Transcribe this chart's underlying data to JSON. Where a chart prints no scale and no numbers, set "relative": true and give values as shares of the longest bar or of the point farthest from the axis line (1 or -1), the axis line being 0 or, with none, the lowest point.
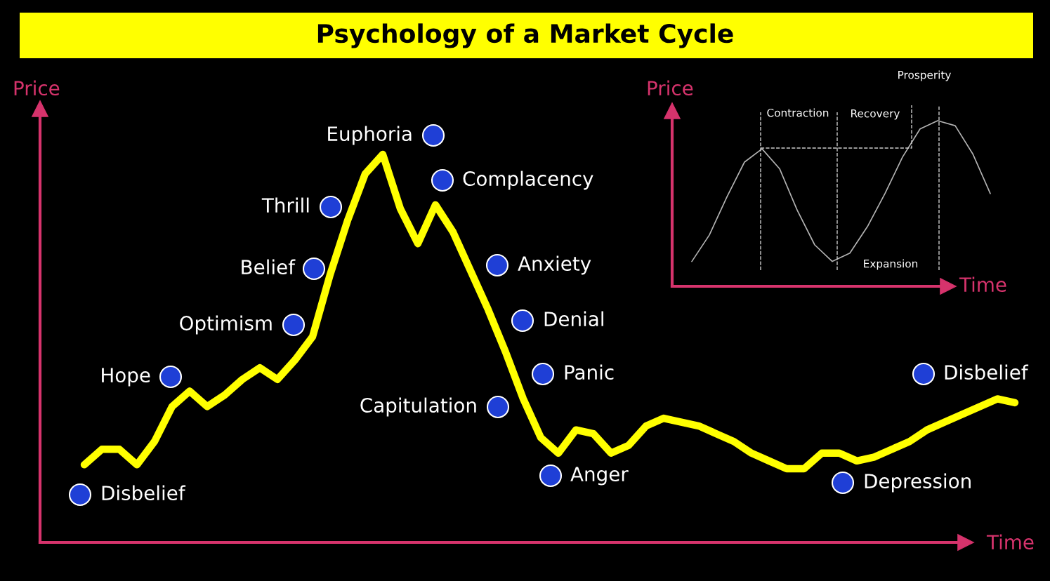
{
  "chart_data": [
    {
      "type": "line",
      "title": "Psychology of a Market Cycle",
      "xlabel": "Time",
      "ylabel": "Price",
      "relative": true,
      "line_style": "solid",
      "categories": [
        null,
        null,
        null,
        null,
        null,
        null,
        null,
        null,
        null,
        null,
        null,
        null,
        null,
        null,
        null,
        null,
        null,
        null,
        null,
        null,
        null,
        null,
        null,
        null,
        null,
        null,
        null,
        null,
        null,
        null,
        null,
        null,
        null,
        null,
        null,
        null,
        null,
        null,
        null,
        null,
        null,
        null,
        null,
        null,
        null,
        null,
        null,
        null,
        null,
        null,
        null,
        null,
        null,
        null
      ],
      "series": [
        {
          "color": "#ffff00",
          "values": [
            0.2,
            0.24,
            0.24,
            0.2,
            0.26,
            0.35,
            0.39,
            0.35,
            0.38,
            0.42,
            0.45,
            0.42,
            0.47,
            0.53,
            0.69,
            0.83,
            0.95,
            1,
            0.86,
            0.77,
            0.87,
            0.8,
            0.7,
            0.6,
            0.49,
            0.37,
            0.27,
            0.23,
            0.29,
            0.28,
            0.23,
            0.25,
            0.3,
            0.32,
            0.31,
            0.3,
            0.28,
            0.26,
            0.23,
            0.21,
            0.19,
            0.19,
            0.23,
            0.23,
            0.21,
            0.22,
            0.24,
            0.26,
            0.29,
            0.31,
            0.33,
            0.35,
            0.37,
            0.36
          ]
        }
      ],
      "annotations": [
        "Euphoria",
        "Complacency",
        "Thrill",
        "Belief",
        "Optimism",
        "Hope",
        "Disbelief",
        "Capitulation",
        "Anxiety",
        "Denial",
        "Panic",
        "Anger",
        "Depression",
        "Disbelief"
      ]
    },
    {
      "type": "line",
      "xlabel": "Time",
      "ylabel": "Price",
      "relative": true,
      "line_style": "solid",
      "categories": [
        null,
        null,
        null,
        null,
        null,
        null,
        null,
        null,
        null,
        null,
        null,
        null,
        null,
        null,
        null,
        null,
        null,
        null
      ],
      "series": [
        {
          "color": "#b3b3b3",
          "values": [
            0.15,
            0.31,
            0.54,
            0.75,
            0.83,
            0.71,
            0.46,
            0.25,
            0.15,
            0.2,
            0.36,
            0.56,
            0.78,
            0.95,
            1,
            0.97,
            0.8,
            0.56
          ]
        }
      ],
      "annotations": [
        "Contraction",
        "Recovery",
        "Prosperity",
        "Expansion"
      ]
    }
  ]
}
